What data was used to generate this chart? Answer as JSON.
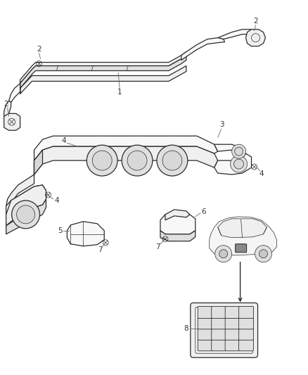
{
  "background_color": "#ffffff",
  "line_color": "#2a2a2a",
  "fig_width": 4.38,
  "fig_height": 5.33,
  "dpi": 100,
  "part_fill": "#f8f8f8",
  "part_fill2": "#efefef",
  "part_fill3": "#e0e0e0",
  "shadow_fill": "#d8d8d8",
  "label_fontsize": 7.5,
  "label_color": "#333333",
  "callout_color": "#666666",
  "callout_lw": 0.6,
  "main_lw": 0.9,
  "thin_lw": 0.5
}
